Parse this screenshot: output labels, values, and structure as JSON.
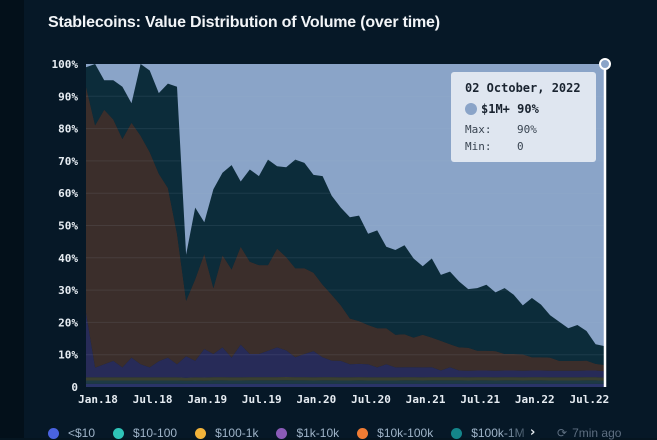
{
  "title": "Stablecoins: Value Distribution of Volume (over time)",
  "chart_data": {
    "type": "area",
    "stacked": true,
    "normalized": true,
    "title": "Stablecoins: Value Distribution of Volume (over time)",
    "xlabel": "",
    "ylabel": "",
    "ylim": [
      0,
      100
    ],
    "y_ticks": [
      "0",
      "10%",
      "20%",
      "30%",
      "40%",
      "50%",
      "60%",
      "70%",
      "80%",
      "90%",
      "100%"
    ],
    "x_ticks": [
      "Jan.18",
      "Jul.18",
      "Jan.19",
      "Jul.19",
      "Jan.20",
      "Jul.20",
      "Jan.21",
      "Jul.21",
      "Jan.22",
      "Jul.22"
    ],
    "x_range": [
      "2018-01",
      "2022-10"
    ],
    "grid": true,
    "x_months": [
      0,
      1,
      2,
      3,
      4,
      5,
      6,
      7,
      8,
      9,
      10,
      11,
      12,
      13,
      14,
      15,
      16,
      17,
      18,
      19,
      20,
      21,
      22,
      23,
      24,
      25,
      26,
      27,
      28,
      29,
      30,
      31,
      32,
      33,
      34,
      35,
      36,
      37,
      38,
      39,
      40,
      41,
      42,
      43,
      44,
      45,
      46,
      47,
      48,
      49,
      50,
      51,
      52,
      53,
      54,
      55,
      56,
      57.03
    ],
    "series": [
      {
        "name": "<$10",
        "color": "#4a63e0",
        "values": [
          1,
          1,
          1,
          1,
          1,
          1,
          1,
          1,
          1,
          1,
          1,
          1,
          1,
          1,
          1,
          1,
          1,
          1,
          1,
          1,
          1,
          1,
          1,
          1,
          1,
          1,
          1,
          1,
          1,
          1,
          1,
          1,
          1,
          1,
          1,
          1,
          1,
          1,
          1,
          1,
          1,
          1,
          1,
          1,
          1,
          1,
          1,
          1,
          1,
          1,
          1,
          1,
          1,
          1,
          1,
          1,
          1,
          1
        ]
      },
      {
        "name": "$10-100",
        "color": "#2fc4b8",
        "values": [
          1,
          1,
          1,
          1,
          1,
          1,
          1,
          1,
          1,
          1,
          1,
          1,
          1,
          1,
          1,
          1,
          1,
          1,
          1,
          1,
          1,
          1,
          1,
          1,
          1,
          1,
          1,
          1,
          1,
          1,
          1,
          1,
          1,
          1,
          1,
          1,
          1,
          1,
          1,
          1,
          1,
          1,
          1,
          1,
          1,
          1,
          1,
          1,
          1,
          1,
          1,
          1,
          1,
          1,
          1,
          1,
          1,
          1
        ]
      },
      {
        "name": "$100-1k",
        "color": "#f2b33a",
        "values": [
          1,
          1,
          1,
          1,
          1,
          1,
          1,
          1,
          1,
          1,
          1,
          1,
          1,
          1,
          1,
          1,
          1,
          1,
          1,
          1,
          1,
          1,
          1,
          1,
          1,
          1,
          1,
          1,
          1,
          1,
          1,
          1,
          1,
          1,
          1,
          1,
          1,
          1,
          1,
          1,
          1,
          1,
          1,
          1,
          1,
          1,
          1,
          1,
          1,
          1,
          1,
          1,
          1,
          1,
          1,
          1,
          1,
          1
        ]
      },
      {
        "name": "$1k-10k",
        "color": "#8b5bb8",
        "values": [
          20,
          3,
          4,
          5,
          3,
          6,
          4,
          3,
          5,
          6,
          4,
          7,
          5,
          9,
          7,
          9,
          6,
          10,
          7,
          7,
          8,
          9,
          8,
          6,
          7,
          8,
          6,
          5,
          5,
          4,
          4,
          4,
          3,
          4,
          3,
          3,
          3,
          3,
          3,
          2,
          3,
          2,
          2,
          2,
          2,
          2,
          2,
          2,
          2,
          2,
          2,
          2,
          2,
          2,
          2,
          2,
          2,
          2
        ]
      },
      {
        "name": "$10k-100k",
        "color": "#f07c34",
        "values": [
          70,
          75,
          78,
          74,
          70,
          72,
          70,
          66,
          58,
          52,
          40,
          18,
          25,
          30,
          20,
          28,
          27,
          30,
          28,
          27,
          26,
          30,
          28,
          27,
          26,
          24,
          22,
          20,
          17,
          14,
          13,
          12,
          12,
          11,
          10,
          10,
          9,
          10,
          9,
          9,
          7,
          7,
          7,
          6,
          6,
          6,
          5,
          5,
          5,
          4,
          4,
          4,
          3,
          3,
          3,
          3,
          2,
          2
        ]
      },
      {
        "name": "$100k-1M",
        "color": "#14858a",
        "values": [
          6,
          19,
          9,
          12,
          16,
          6,
          22,
          25,
          25,
          32,
          45,
          15,
          22,
          10,
          30,
          25,
          32,
          20,
          28,
          27,
          32,
          25,
          27,
          33,
          32,
          30,
          33,
          30,
          30,
          31,
          32,
          28,
          30,
          25,
          26,
          27,
          24,
          21,
          24,
          20,
          22,
          20,
          18,
          19,
          20,
          18,
          20,
          18,
          15,
          18,
          16,
          13,
          12,
          10,
          11,
          9,
          6,
          6
        ]
      },
      {
        "name": "$1M+",
        "color": "#8aa4c8",
        "values": [
          1,
          0,
          5,
          5,
          7,
          12,
          0,
          2,
          9,
          6,
          7,
          62,
          44,
          50,
          38,
          33,
          31,
          36,
          32,
          34,
          29,
          31,
          31,
          29,
          30,
          34,
          34,
          40,
          44,
          47,
          46,
          52,
          51,
          56,
          57,
          55,
          59,
          62,
          59,
          64,
          63,
          66,
          69,
          68,
          67,
          70,
          68,
          70,
          74,
          71,
          73,
          77,
          79,
          81,
          80,
          81,
          85,
          90
        ]
      }
    ],
    "tooltip": {
      "date": "02 October, 2022",
      "series": "$1M+",
      "value": "90%",
      "max_label": "Max:",
      "max_value": "90%",
      "min_label": "Min:",
      "min_value": "0"
    }
  },
  "legend": {
    "items": [
      {
        "label": "<$10",
        "color": "#4a63e0"
      },
      {
        "label": "$10-100",
        "color": "#2fc4b8"
      },
      {
        "label": "$100-1k",
        "color": "#f2b33a"
      },
      {
        "label": "$1k-10k",
        "color": "#8b5bb8"
      },
      {
        "label": "$10k-100k",
        "color": "#f07c34"
      },
      {
        "label": "$100k-1M",
        "color": "#14858a"
      }
    ],
    "next_icon": "chevron-right-icon",
    "next_label": "›"
  },
  "status": {
    "icon": "clock-refresh-icon",
    "icon_glyph": "⟳",
    "updated": "7min ago"
  },
  "layer_colors": {
    "<$10": "#2a3468",
    "$10-100": "#1e3a45",
    "$100-1k": "#3a3f30",
    "$1k-10k": "#272b58",
    "$10k-100k": "#3b2e2b",
    "$100k-1M": "#0c2c3a",
    "$1M+": "#8aa4c8"
  }
}
